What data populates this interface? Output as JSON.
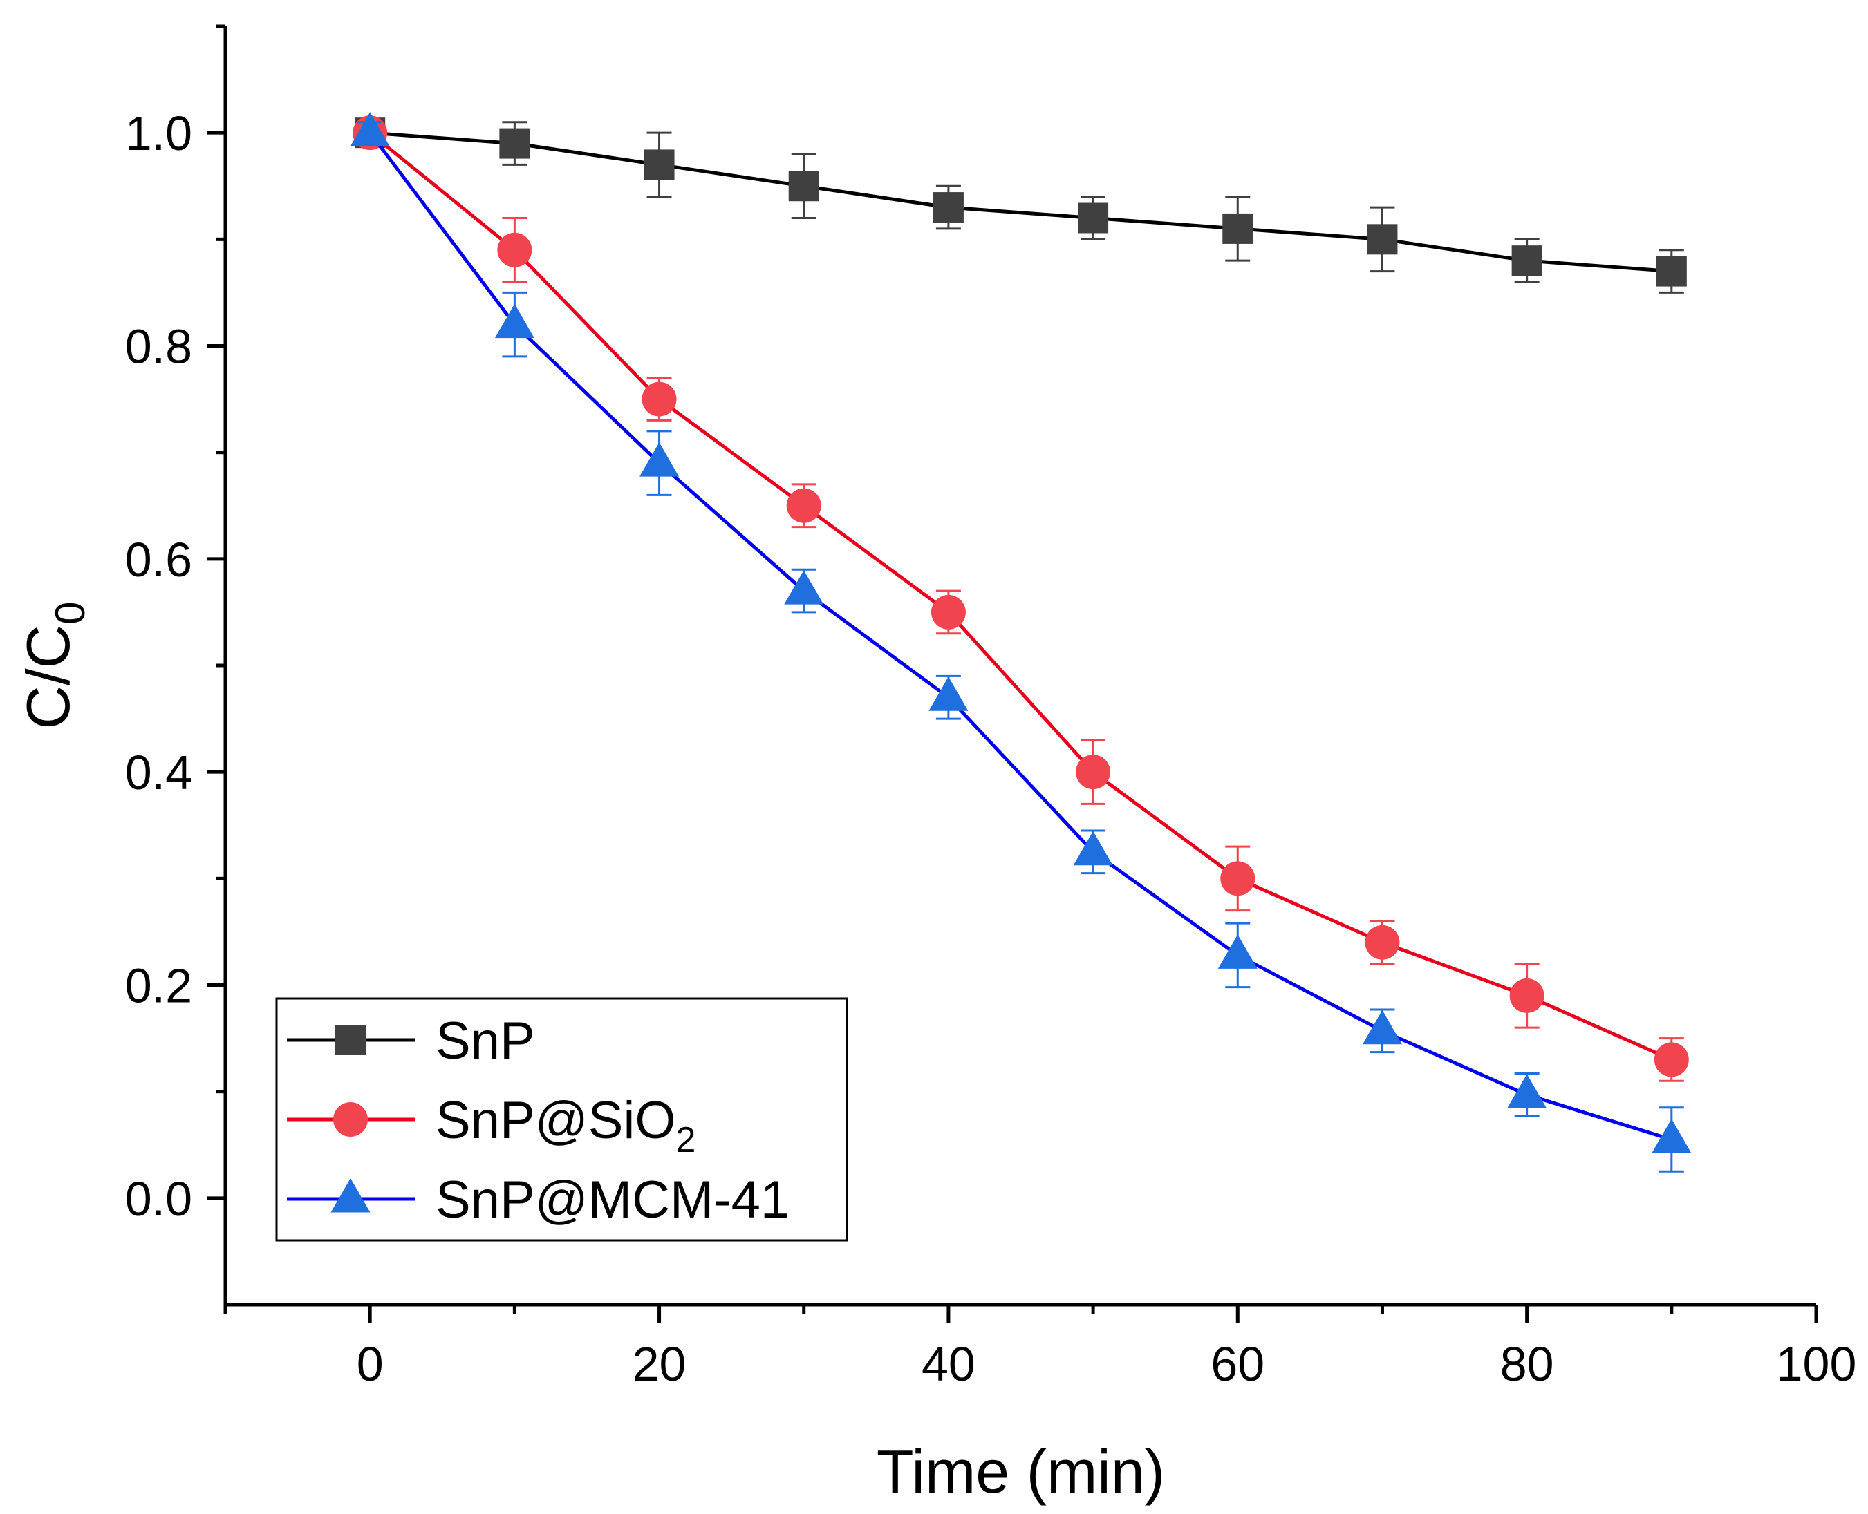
{
  "chart_data": {
    "type": "line",
    "title": "",
    "xlabel": "Time (min)",
    "ylabel": {
      "main": "C/C",
      "sub": "0"
    },
    "xlim": [
      -10,
      100
    ],
    "ylim": [
      -0.1,
      1.1
    ],
    "x_ticks": [
      0,
      20,
      40,
      60,
      80,
      100
    ],
    "x_tick_labels": [
      "0",
      "20",
      "40",
      "60",
      "80",
      "100"
    ],
    "y_ticks": [
      0.0,
      0.2,
      0.4,
      0.6,
      0.8,
      1.0
    ],
    "y_tick_labels": [
      "0.0",
      "0.2",
      "0.4",
      "0.6",
      "0.8",
      "1.0"
    ],
    "grid": false,
    "legend_position": "bottom-left",
    "x": [
      0,
      10,
      20,
      30,
      40,
      50,
      60,
      70,
      80,
      90
    ],
    "series": [
      {
        "name": "SnP",
        "legend_main": "SnP",
        "legend_sub": "",
        "marker": "square",
        "color": "#000000",
        "fill": "#404040",
        "values": [
          1.0,
          0.99,
          0.97,
          0.95,
          0.93,
          0.92,
          0.91,
          0.9,
          0.88,
          0.87
        ],
        "errors": [
          0.01,
          0.02,
          0.03,
          0.03,
          0.02,
          0.02,
          0.03,
          0.03,
          0.02,
          0.02
        ]
      },
      {
        "name": "SnP@SiO2",
        "legend_main": "SnP@SiO",
        "legend_sub": "2",
        "marker": "circle",
        "color": "#e8001c",
        "fill": "#f2444e",
        "values": [
          1.0,
          0.89,
          0.75,
          0.65,
          0.55,
          0.4,
          0.3,
          0.24,
          0.19,
          0.13
        ],
        "errors": [
          0.01,
          0.03,
          0.02,
          0.02,
          0.02,
          0.03,
          0.03,
          0.02,
          0.03,
          0.02
        ]
      },
      {
        "name": "SnP@MCM-41",
        "legend_main": "SnP@MCM-41",
        "legend_sub": "",
        "marker": "triangle",
        "color": "#0000ee",
        "fill": "#1f6fde",
        "values": [
          1.0,
          0.82,
          0.69,
          0.57,
          0.47,
          0.325,
          0.228,
          0.157,
          0.097,
          0.055
        ],
        "errors": [
          0.01,
          0.03,
          0.03,
          0.02,
          0.02,
          0.02,
          0.03,
          0.02,
          0.02,
          0.03
        ]
      }
    ]
  }
}
